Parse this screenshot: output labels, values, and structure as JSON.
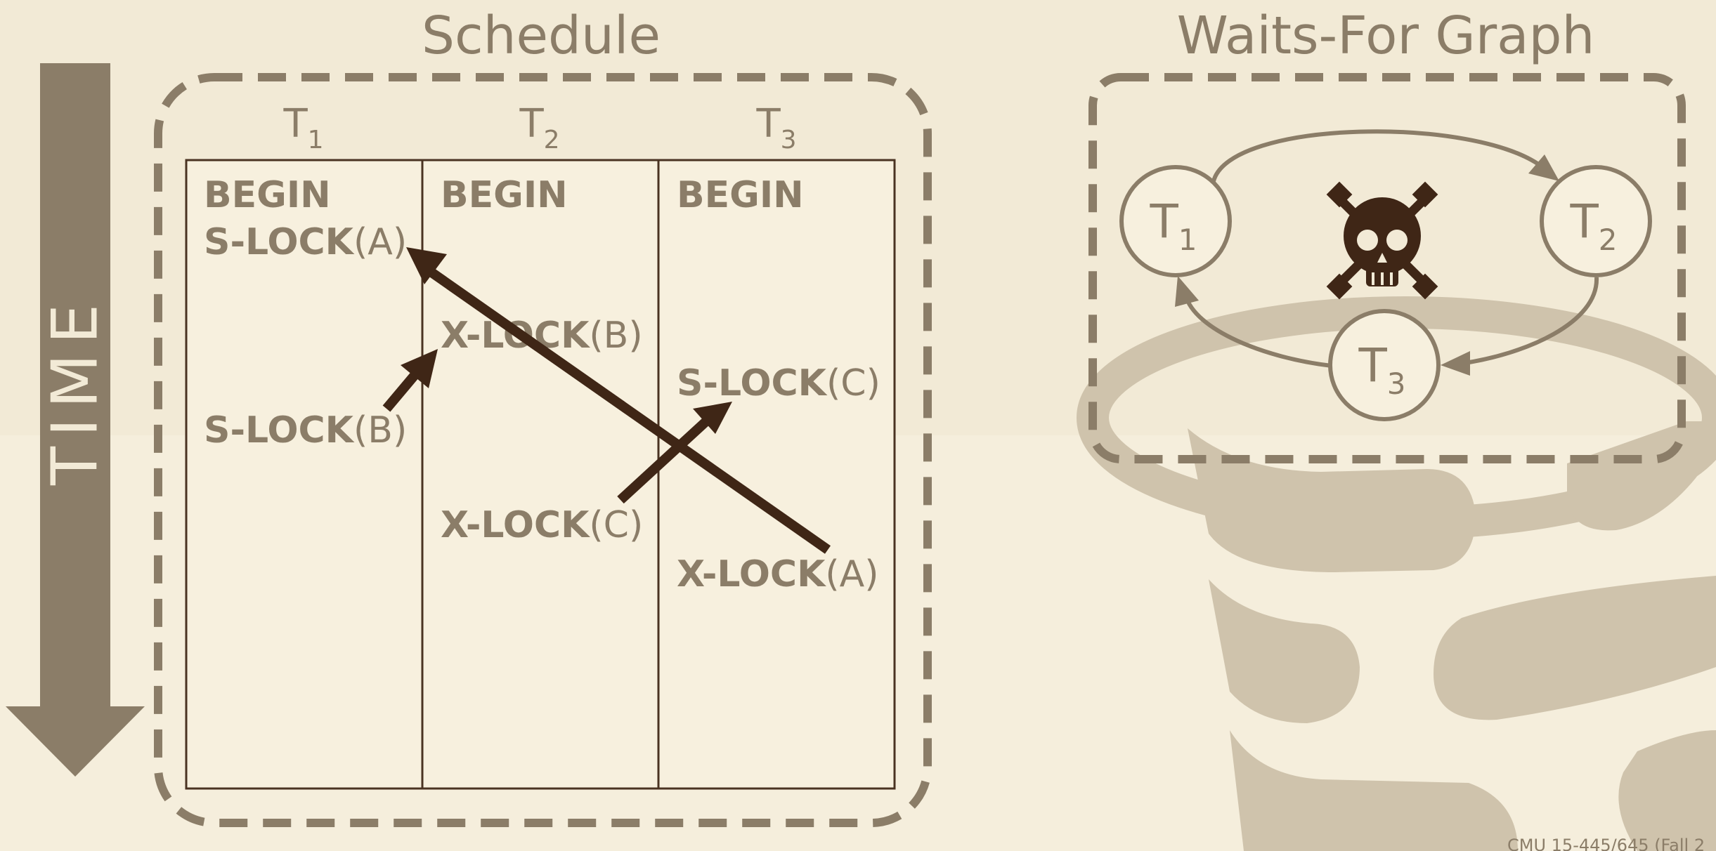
{
  "time_label": "TIME",
  "schedule": {
    "title": "Schedule",
    "columns": [
      {
        "name": "T",
        "sub": "1"
      },
      {
        "name": "T",
        "sub": "2"
      },
      {
        "name": "T",
        "sub": "3"
      }
    ],
    "cells": {
      "t1_begin": "BEGIN",
      "t1_slock_a_op": "S-LOCK",
      "t1_slock_a_arg": "(A)",
      "t1_slock_b_op": "S-LOCK",
      "t1_slock_b_arg": "(B)",
      "t2_begin": "BEGIN",
      "t2_xlock_b_op": "X-LOCK",
      "t2_xlock_b_arg": "(B)",
      "t2_xlock_c_op": "X-LOCK",
      "t2_xlock_c_arg": "(C)",
      "t3_begin": "BEGIN",
      "t3_slock_c_op": "S-LOCK",
      "t3_slock_c_arg": "(C)",
      "t3_xlock_a_op": "X-LOCK",
      "t3_xlock_a_arg": "(A)"
    }
  },
  "graph": {
    "title": "Waits-For Graph",
    "nodes": [
      {
        "name": "T",
        "sub": "1"
      },
      {
        "name": "T",
        "sub": "2"
      },
      {
        "name": "T",
        "sub": "3"
      }
    ],
    "deadlock_icon": "skull-crossbones-icon"
  },
  "footer": "CMU 15-445/645 (Fall 2"
}
